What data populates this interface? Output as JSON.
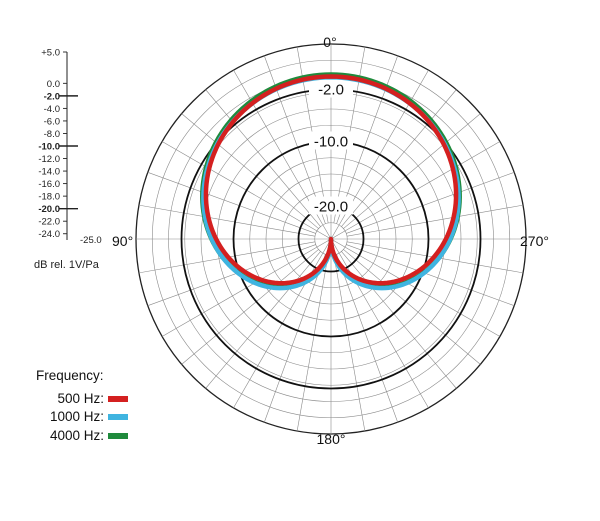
{
  "chart_data": {
    "type": "polar",
    "angle_labels": [
      {
        "deg": 0,
        "text": "0°"
      },
      {
        "deg": 90,
        "text": "90°"
      },
      {
        "deg": 180,
        "text": "180°"
      },
      {
        "deg": 270,
        "text": "270°"
      }
    ],
    "radial_rings": [
      {
        "value": -2.0,
        "text": "-2.0",
        "bold": true
      },
      {
        "value": -10.0,
        "text": "-10.0",
        "bold": true
      },
      {
        "value": -20.0,
        "text": "-20.0",
        "bold": true
      }
    ],
    "radial_range": [
      -25,
      5
    ],
    "scale": {
      "ticks": [
        {
          "value": 5.0,
          "text": "+5.0",
          "bold": false
        },
        {
          "value": 0.0,
          "text": "0.0",
          "bold": false
        },
        {
          "value": -2.0,
          "text": "-2.0",
          "bold": true
        },
        {
          "value": -4.0,
          "text": "-4.0",
          "bold": false
        },
        {
          "value": -6.0,
          "text": "-6.0",
          "bold": false
        },
        {
          "value": -8.0,
          "text": "-8.0",
          "bold": false
        },
        {
          "value": -10.0,
          "text": "-10.0",
          "bold": true
        },
        {
          "value": -12.0,
          "text": "-12.0",
          "bold": false
        },
        {
          "value": -14.0,
          "text": "-14.0",
          "bold": false
        },
        {
          "value": -16.0,
          "text": "-16.0",
          "bold": false
        },
        {
          "value": -18.0,
          "text": "-18.0",
          "bold": false
        },
        {
          "value": -20.0,
          "text": "-20.0",
          "bold": true
        },
        {
          "value": -22.0,
          "text": "-22.0",
          "bold": false
        },
        {
          "value": -24.0,
          "text": "-24.0",
          "bold": false
        }
      ],
      "end_label": "-25.0",
      "unit": "dB rel. 1V/Pa"
    },
    "pattern": "cardioid",
    "series": [
      {
        "name": "500 Hz:",
        "color": "#d42020",
        "values_note": "cardioid, 0.0 dB at 0°"
      },
      {
        "name": "1000 Hz:",
        "color": "#3fb4e0",
        "values_note": "cardioid, 0.0 dB at 0°"
      },
      {
        "name": "4000 Hz:",
        "color": "#1f8a3c",
        "values_note": "cardioid, 0.0 dB at 0°"
      }
    ],
    "legend": {
      "title": "Frequency:",
      "placement": "bottom-left"
    }
  }
}
